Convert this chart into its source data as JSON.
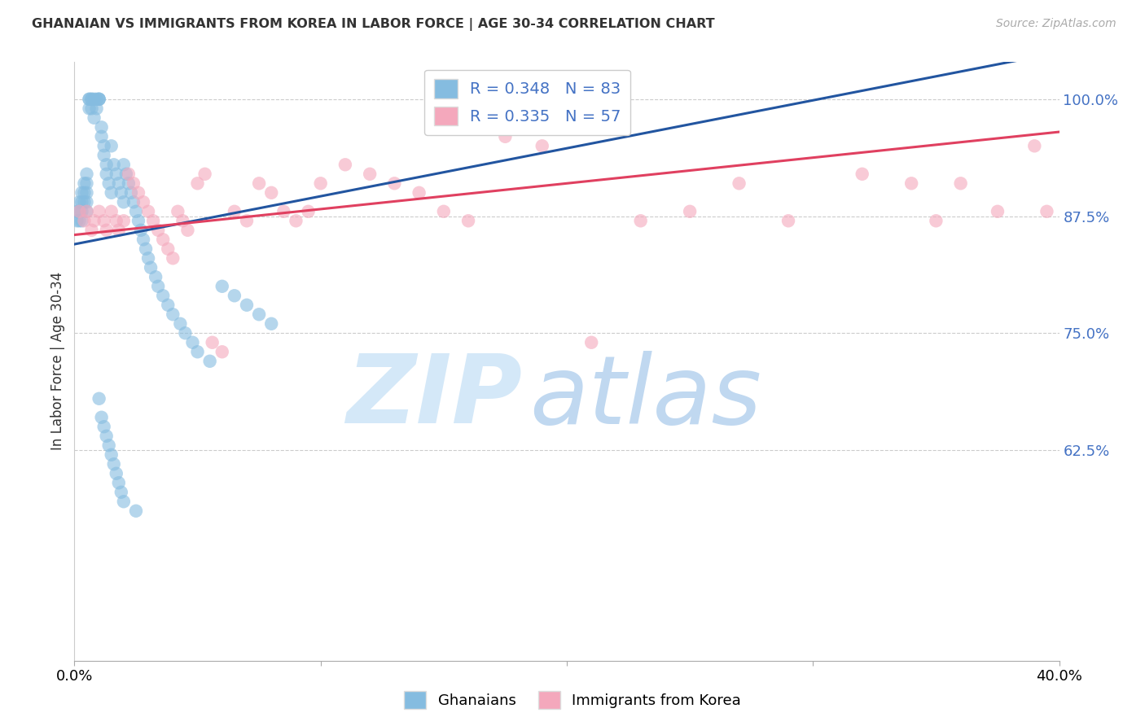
{
  "title": "GHANAIAN VS IMMIGRANTS FROM KOREA IN LABOR FORCE | AGE 30-34 CORRELATION CHART",
  "source": "Source: ZipAtlas.com",
  "ylabel": "In Labor Force | Age 30-34",
  "xlim": [
    0.0,
    0.4
  ],
  "ylim": [
    0.4,
    1.04
  ],
  "ytick_vals": [
    1.0,
    0.875,
    0.75,
    0.625
  ],
  "ytick_labels": [
    "100.0%",
    "87.5%",
    "75.0%",
    "62.5%"
  ],
  "xtick_vals": [
    0.0,
    0.1,
    0.2,
    0.3,
    0.4
  ],
  "xtick_labels": [
    "0.0%",
    "",
    "",
    "",
    "40.0%"
  ],
  "blue_R": 0.348,
  "blue_N": 83,
  "pink_R": 0.335,
  "pink_N": 57,
  "blue_color": "#85bce0",
  "pink_color": "#f4a8bc",
  "blue_line_color": "#2255a0",
  "pink_line_color": "#e04060",
  "legend_labels": [
    "Ghanaians",
    "Immigrants from Korea"
  ],
  "blue_x": [
    0.001,
    0.001,
    0.002,
    0.002,
    0.002,
    0.003,
    0.003,
    0.003,
    0.003,
    0.004,
    0.004,
    0.004,
    0.005,
    0.005,
    0.005,
    0.005,
    0.005,
    0.006,
    0.006,
    0.006,
    0.007,
    0.007,
    0.007,
    0.008,
    0.008,
    0.009,
    0.009,
    0.01,
    0.01,
    0.01,
    0.011,
    0.011,
    0.012,
    0.012,
    0.013,
    0.013,
    0.014,
    0.015,
    0.015,
    0.016,
    0.017,
    0.018,
    0.019,
    0.02,
    0.02,
    0.021,
    0.022,
    0.023,
    0.024,
    0.025,
    0.026,
    0.027,
    0.028,
    0.029,
    0.03,
    0.031,
    0.033,
    0.034,
    0.036,
    0.038,
    0.04,
    0.043,
    0.045,
    0.048,
    0.05,
    0.055,
    0.06,
    0.065,
    0.07,
    0.075,
    0.08,
    0.01,
    0.011,
    0.012,
    0.013,
    0.014,
    0.015,
    0.016,
    0.017,
    0.018,
    0.019,
    0.02,
    0.025
  ],
  "blue_y": [
    0.88,
    0.87,
    0.89,
    0.88,
    0.87,
    0.9,
    0.89,
    0.88,
    0.87,
    0.91,
    0.9,
    0.89,
    0.92,
    0.91,
    0.9,
    0.89,
    0.88,
    1.0,
    1.0,
    0.99,
    1.0,
    1.0,
    0.99,
    1.0,
    0.98,
    1.0,
    0.99,
    1.0,
    1.0,
    1.0,
    0.97,
    0.96,
    0.95,
    0.94,
    0.93,
    0.92,
    0.91,
    0.9,
    0.95,
    0.93,
    0.92,
    0.91,
    0.9,
    0.89,
    0.93,
    0.92,
    0.91,
    0.9,
    0.89,
    0.88,
    0.87,
    0.86,
    0.85,
    0.84,
    0.83,
    0.82,
    0.81,
    0.8,
    0.79,
    0.78,
    0.77,
    0.76,
    0.75,
    0.74,
    0.73,
    0.72,
    0.8,
    0.79,
    0.78,
    0.77,
    0.76,
    0.68,
    0.66,
    0.65,
    0.64,
    0.63,
    0.62,
    0.61,
    0.6,
    0.59,
    0.58,
    0.57,
    0.56
  ],
  "pink_x": [
    0.002,
    0.004,
    0.005,
    0.007,
    0.008,
    0.01,
    0.012,
    0.013,
    0.015,
    0.017,
    0.018,
    0.02,
    0.022,
    0.024,
    0.026,
    0.028,
    0.03,
    0.032,
    0.034,
    0.036,
    0.038,
    0.04,
    0.042,
    0.044,
    0.046,
    0.05,
    0.053,
    0.056,
    0.06,
    0.065,
    0.07,
    0.075,
    0.08,
    0.085,
    0.09,
    0.095,
    0.1,
    0.11,
    0.12,
    0.13,
    0.14,
    0.15,
    0.16,
    0.175,
    0.19,
    0.21,
    0.23,
    0.25,
    0.27,
    0.29,
    0.32,
    0.34,
    0.35,
    0.36,
    0.375,
    0.39,
    0.395
  ],
  "pink_y": [
    0.88,
    0.87,
    0.88,
    0.86,
    0.87,
    0.88,
    0.87,
    0.86,
    0.88,
    0.87,
    0.86,
    0.87,
    0.92,
    0.91,
    0.9,
    0.89,
    0.88,
    0.87,
    0.86,
    0.85,
    0.84,
    0.83,
    0.88,
    0.87,
    0.86,
    0.91,
    0.92,
    0.74,
    0.73,
    0.88,
    0.87,
    0.91,
    0.9,
    0.88,
    0.87,
    0.88,
    0.91,
    0.93,
    0.92,
    0.91,
    0.9,
    0.88,
    0.87,
    0.96,
    0.95,
    0.74,
    0.87,
    0.88,
    0.91,
    0.87,
    0.92,
    0.91,
    0.87,
    0.91,
    0.88,
    0.95,
    0.88
  ]
}
